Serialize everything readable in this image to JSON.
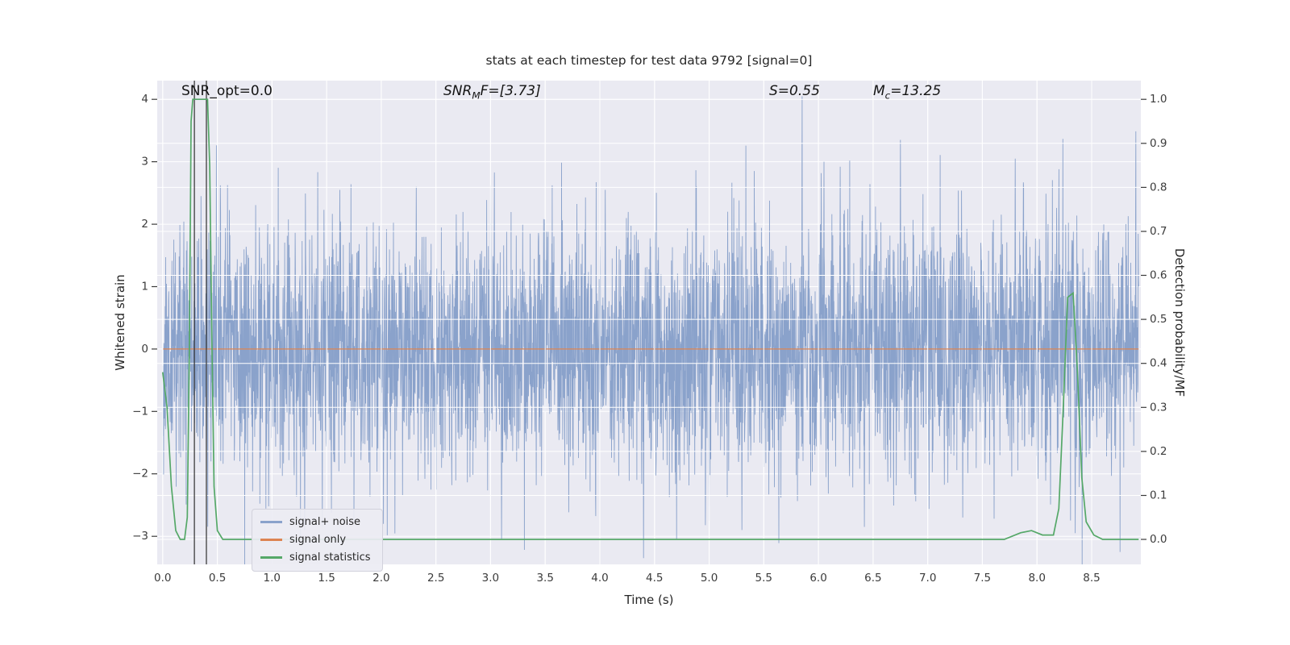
{
  "figure": {
    "bg": "#ffffff",
    "axes_bg": "#eaeaf2",
    "grid_color": "#ffffff",
    "tick_color": "#3b3b3b",
    "text_color": "#262626"
  },
  "chart_data": {
    "type": "line",
    "title": "stats at each timestep for test data 9792 [signal=0]",
    "xlabel": "Time (s)",
    "ylabel_left": "Whitened strain",
    "ylabel_right": "Detection probability/MF",
    "xlim": [
      -0.05,
      8.95
    ],
    "ylim_left": [
      -3.45,
      4.3
    ],
    "ylim_right_anchors": {
      "r0_left": -3.05,
      "r1_left": 4.0
    },
    "xticks": {
      "values": [
        0.0,
        0.5,
        1.0,
        1.5,
        2.0,
        2.5,
        3.0,
        3.5,
        4.0,
        4.5,
        5.0,
        5.5,
        6.0,
        6.5,
        7.0,
        7.5,
        8.0,
        8.5
      ],
      "labels": [
        "0.0",
        "0.5",
        "1.0",
        "1.5",
        "2.0",
        "2.5",
        "3.0",
        "3.5",
        "4.0",
        "4.5",
        "5.0",
        "5.5",
        "6.0",
        "6.5",
        "7.0",
        "7.5",
        "8.0",
        "8.5"
      ]
    },
    "yticks_left": {
      "values": [
        -3,
        -2,
        -1,
        0,
        1,
        2,
        3,
        4
      ],
      "labels": [
        "−3",
        "−2",
        "−1",
        "0",
        "1",
        "2",
        "3",
        "4"
      ]
    },
    "yticks_right": {
      "values": [
        0.0,
        0.1,
        0.2,
        0.3,
        0.4,
        0.5,
        0.6,
        0.7,
        0.8,
        0.9,
        1.0
      ],
      "labels": [
        "0.0",
        "0.1",
        "0.2",
        "0.3",
        "0.4",
        "0.5",
        "0.6",
        "0.7",
        "0.8",
        "0.9",
        "1.0"
      ]
    },
    "annotations": [
      {
        "pre": "SNR_opt=0.0",
        "sub": "",
        "post": "",
        "italic": false,
        "x": 0.17
      },
      {
        "pre": "SNR",
        "sub": "M",
        "post": "F=[3.73]",
        "italic": true,
        "x": 2.57
      },
      {
        "pre": "S",
        "sub": "",
        "post": "=0.55",
        "italic": true,
        "x": 5.55
      },
      {
        "pre": "M",
        "sub": "c",
        "post": "=13.25",
        "italic": true,
        "x": 6.5
      }
    ],
    "series": [
      {
        "name": "signal+ noise",
        "color": "#8aa2cb",
        "kind": "noise",
        "axis": "left",
        "seed": 9792,
        "n": 4200,
        "std": 1.0,
        "x_start": 0.0,
        "x_end": 8.93,
        "spikes": [
          [
            5.85,
            4.05
          ],
          [
            6.05,
            3.0
          ],
          [
            6.2,
            2.92
          ],
          [
            6.75,
            3.35
          ],
          [
            7.8,
            3.05
          ],
          [
            8.2,
            2.88
          ],
          [
            2.32,
            2.6
          ],
          [
            3.0,
            2.62
          ],
          [
            1.62,
            2.55
          ],
          [
            4.05,
            2.55
          ],
          [
            0.35,
            2.45
          ],
          [
            4.4,
            -3.35
          ],
          [
            3.1,
            -3.05
          ],
          [
            5.3,
            -2.9
          ],
          [
            6.42,
            -2.85
          ],
          [
            7.32,
            -2.7
          ],
          [
            8.35,
            -2.95
          ],
          [
            2.02,
            -2.8
          ],
          [
            1.3,
            -2.9
          ],
          [
            5.0,
            -2.75
          ]
        ]
      },
      {
        "name": "signal only",
        "color": "#dd8452",
        "kind": "flat",
        "axis": "left",
        "value": 0.0,
        "x_start": 0.0,
        "x_end": 8.93
      },
      {
        "name": "signal statistics",
        "color": "#55a868",
        "kind": "line",
        "axis": "right",
        "points": [
          [
            0.0,
            0.38
          ],
          [
            0.04,
            0.3
          ],
          [
            0.08,
            0.12
          ],
          [
            0.12,
            0.02
          ],
          [
            0.16,
            0.0
          ],
          [
            0.2,
            0.0
          ],
          [
            0.225,
            0.05
          ],
          [
            0.245,
            0.45
          ],
          [
            0.26,
            0.95
          ],
          [
            0.275,
            1.0
          ],
          [
            0.41,
            1.0
          ],
          [
            0.43,
            0.85
          ],
          [
            0.45,
            0.45
          ],
          [
            0.47,
            0.12
          ],
          [
            0.5,
            0.02
          ],
          [
            0.55,
            0.0
          ],
          [
            1.0,
            0.0
          ],
          [
            2.0,
            0.0
          ],
          [
            3.0,
            0.0
          ],
          [
            4.0,
            0.0
          ],
          [
            5.0,
            0.0
          ],
          [
            6.0,
            0.0
          ],
          [
            7.0,
            0.0
          ],
          [
            7.7,
            0.0
          ],
          [
            7.85,
            0.015
          ],
          [
            7.95,
            0.02
          ],
          [
            8.05,
            0.01
          ],
          [
            8.15,
            0.01
          ],
          [
            8.2,
            0.07
          ],
          [
            8.24,
            0.3
          ],
          [
            8.28,
            0.55
          ],
          [
            8.33,
            0.56
          ],
          [
            8.37,
            0.38
          ],
          [
            8.41,
            0.14
          ],
          [
            8.45,
            0.04
          ],
          [
            8.52,
            0.01
          ],
          [
            8.6,
            0.0
          ],
          [
            8.93,
            0.0
          ]
        ]
      }
    ],
    "event_markers": {
      "color": "#2f2f2f",
      "xs": [
        0.29,
        0.4
      ]
    },
    "legend": {
      "entries": [
        "signal+ noise",
        "signal only",
        "signal statistics"
      ]
    }
  }
}
